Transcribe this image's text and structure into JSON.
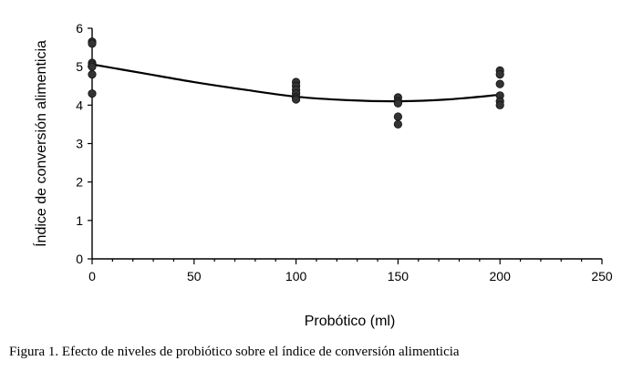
{
  "caption": "Figura 1.   Efecto de niveles de probiótico sobre el índice de conversión alimenticia",
  "chart_data": {
    "type": "scatter",
    "title": "",
    "xlabel": "Probótico (ml)",
    "ylabel": "Índice de conversión alimenticia",
    "xlim": [
      0,
      250
    ],
    "ylim": [
      0,
      6
    ],
    "x_ticks": [
      0,
      50,
      100,
      150,
      200,
      250
    ],
    "y_ticks": [
      0,
      1,
      2,
      3,
      4,
      5,
      6
    ],
    "x_tick_labels": [
      "0",
      "50",
      "100",
      "150",
      "200",
      "250"
    ],
    "y_tick_labels": [
      "0",
      "1",
      "2",
      "3",
      "4",
      "5",
      "6"
    ],
    "grid": false,
    "legend": "none",
    "point_color": "#333333",
    "series": [
      {
        "points": [
          {
            "x": 0,
            "y": 5.65
          },
          {
            "x": 0,
            "y": 5.6
          },
          {
            "x": 0,
            "y": 5.1
          },
          {
            "x": 0,
            "y": 5.05
          },
          {
            "x": 0,
            "y": 5.0
          },
          {
            "x": 0,
            "y": 4.8
          },
          {
            "x": 0,
            "y": 4.3
          },
          {
            "x": 100,
            "y": 4.6
          },
          {
            "x": 100,
            "y": 4.5
          },
          {
            "x": 100,
            "y": 4.4
          },
          {
            "x": 100,
            "y": 4.3
          },
          {
            "x": 100,
            "y": 4.2
          },
          {
            "x": 100,
            "y": 4.15
          },
          {
            "x": 150,
            "y": 4.2
          },
          {
            "x": 150,
            "y": 4.1
          },
          {
            "x": 150,
            "y": 4.05
          },
          {
            "x": 150,
            "y": 3.7
          },
          {
            "x": 150,
            "y": 3.5
          },
          {
            "x": 200,
            "y": 4.9
          },
          {
            "x": 200,
            "y": 4.8
          },
          {
            "x": 200,
            "y": 4.55
          },
          {
            "x": 200,
            "y": 4.25
          },
          {
            "x": 200,
            "y": 4.1
          },
          {
            "x": 200,
            "y": 4.0
          }
        ]
      }
    ],
    "trendline": {
      "type": "polynomial-2",
      "x": [
        0,
        25,
        50,
        75,
        100,
        125,
        150,
        175,
        200
      ],
      "y": [
        5.06,
        4.83,
        4.6,
        4.4,
        4.22,
        4.13,
        4.1,
        4.15,
        4.27
      ]
    }
  }
}
